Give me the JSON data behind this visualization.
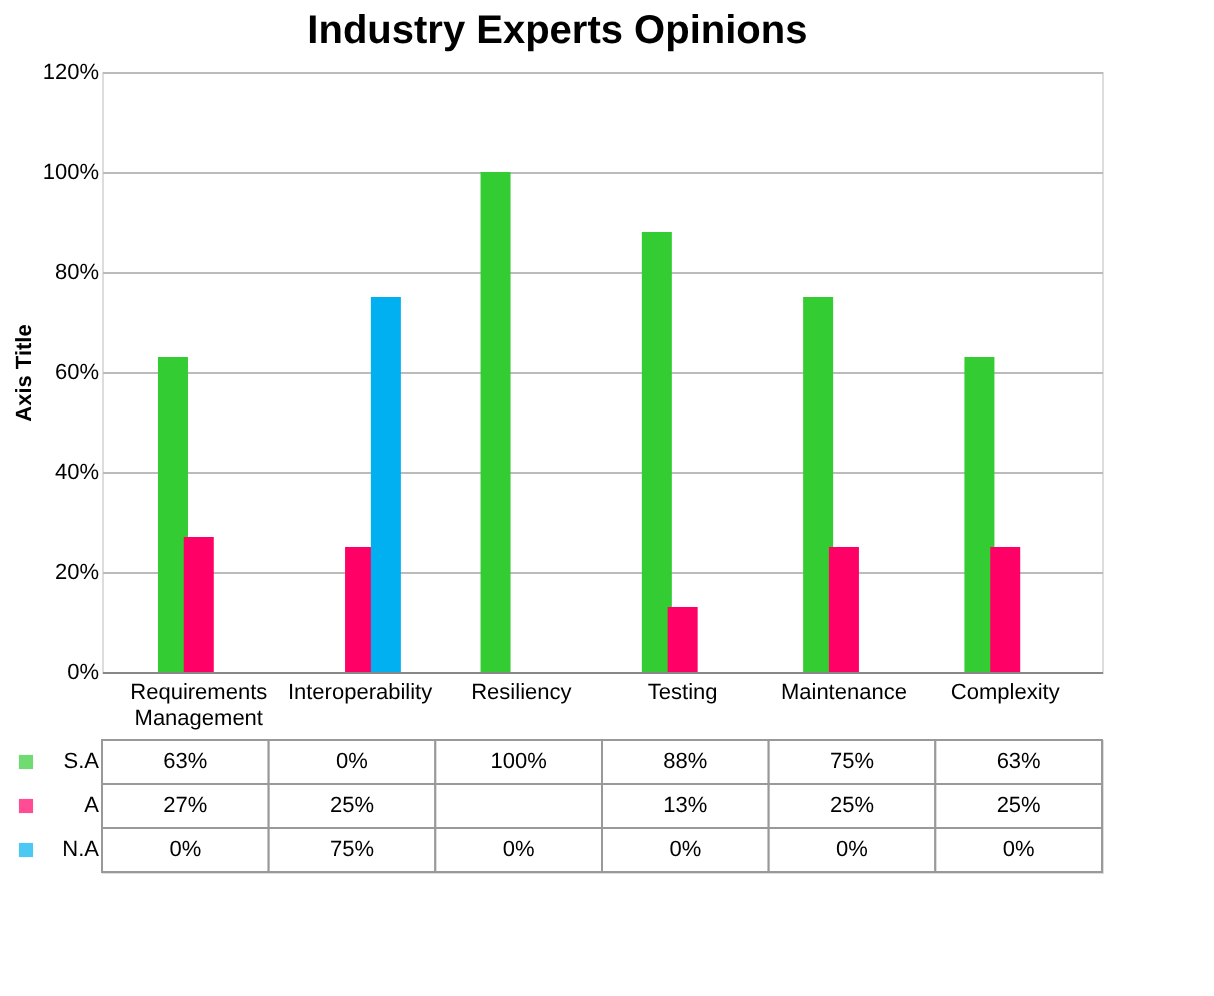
{
  "chart_data": {
    "type": "bar",
    "title": "Industry Experts Opinions",
    "ylabel": "Axis Title",
    "categories": [
      "Requirements Management",
      "Interoperability",
      "Resiliency",
      "Testing",
      "Maintenance",
      "Complexity"
    ],
    "series": [
      {
        "name": "S.A",
        "color": "#33cc33",
        "values": [
          63,
          0,
          100,
          88,
          75,
          63
        ],
        "value_labels": [
          "63%",
          "0%",
          "100%",
          "88%",
          "75%",
          "63%"
        ]
      },
      {
        "name": "A",
        "color": "#ff0066",
        "values": [
          27,
          25,
          null,
          13,
          25,
          25
        ],
        "value_labels": [
          "27%",
          "25%",
          null,
          "13%",
          "25%",
          "25%"
        ]
      },
      {
        "name": "N.A",
        "color": "#00b0f0",
        "values": [
          0,
          75,
          0,
          0,
          0,
          0
        ],
        "value_labels": [
          "0%",
          "75%",
          "0%",
          "0%",
          "0%",
          "0%"
        ]
      }
    ],
    "ylim": [
      0,
      120
    ],
    "yticks": [
      {
        "value": 0,
        "label": "0%"
      },
      {
        "value": 20,
        "label": "20%"
      },
      {
        "value": 40,
        "label": "40%"
      },
      {
        "value": 60,
        "label": "60%"
      },
      {
        "value": 80,
        "label": "80%"
      },
      {
        "value": 100,
        "label": "100%"
      },
      {
        "value": 120,
        "label": "120%"
      }
    ],
    "grid": "y",
    "legend": "bottom"
  }
}
